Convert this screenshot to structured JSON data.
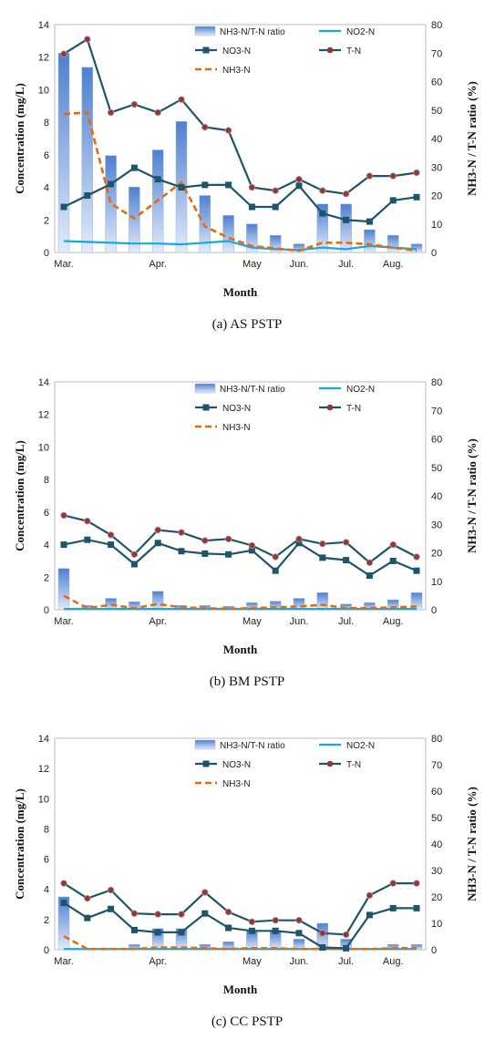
{
  "legend": [
    "NH3-N/T-N ratio",
    "NO2-N",
    "NO3-N",
    "T-N",
    "NH3-N"
  ],
  "y_left_label": "Concentration (mg/L)",
  "y_right_label": "NH3-N / T-N ratio (%)",
  "x_label": "Month",
  "colors": {
    "ratio": "#7fa6de",
    "no2": "#19a7e0",
    "no3": "#1e5568",
    "tn": "#1e5568",
    "tn_marker": "#8a3a3a",
    "nh3": "#e46c0a"
  },
  "chart_data": [
    {
      "type": "line",
      "caption": "(a)  AS  PSTP",
      "xlabel": "Month",
      "ylabel": "Concentration (mg/L)",
      "y2label": "NH3-N / T-N ratio (%)",
      "ylim": [
        0,
        14
      ],
      "y2lim": [
        0,
        80
      ],
      "yticks": [
        "0",
        "2",
        "4",
        "6",
        "8",
        "10",
        "12",
        "14"
      ],
      "y2ticks": [
        "0",
        "10",
        "20",
        "30",
        "40",
        "50",
        "60",
        "70",
        "80"
      ],
      "xtick_labels": [
        [
          "Mar.",
          0
        ],
        [
          "Apr.",
          4
        ],
        [
          "May",
          8
        ],
        [
          "Jun.",
          10
        ],
        [
          "Jul.",
          12
        ],
        [
          "Aug.",
          14
        ]
      ],
      "x": [
        0,
        1,
        2,
        3,
        4,
        5,
        6,
        7,
        8,
        9,
        10,
        11,
        12,
        13,
        14,
        15
      ],
      "series": [
        {
          "name": "NH3-N/T-N ratio",
          "type": "bar",
          "axis": "right",
          "values": [
            70,
            65,
            34,
            23,
            36,
            46,
            20,
            13,
            10,
            6,
            3,
            17,
            17,
            8,
            6,
            3
          ]
        },
        {
          "name": "NO2-N",
          "type": "line",
          "axis": "left",
          "values": [
            0.7,
            0.65,
            0.6,
            0.55,
            0.55,
            0.5,
            0.6,
            0.7,
            0.3,
            0.2,
            0.15,
            0.3,
            0.2,
            0.4,
            0.3,
            0.2
          ]
        },
        {
          "name": "NO3-N",
          "type": "line",
          "axis": "left",
          "values": [
            2.8,
            3.5,
            4.2,
            5.2,
            4.5,
            4.0,
            4.15,
            4.15,
            2.8,
            2.8,
            4.1,
            2.4,
            2.0,
            1.9,
            3.2,
            3.4
          ]
        },
        {
          "name": "T-N",
          "type": "line",
          "axis": "left",
          "values": [
            12.2,
            13.1,
            8.6,
            9.1,
            8.6,
            9.4,
            7.7,
            7.5,
            4.0,
            3.8,
            4.5,
            3.8,
            3.6,
            4.7,
            4.7,
            4.9
          ]
        },
        {
          "name": "NH3-N",
          "type": "line",
          "axis": "left",
          "values": [
            8.5,
            8.6,
            3.0,
            2.1,
            3.2,
            4.3,
            1.6,
            0.9,
            0.4,
            0.25,
            0.1,
            0.6,
            0.6,
            0.5,
            0.3,
            0.1
          ]
        }
      ]
    },
    {
      "type": "line",
      "caption": "(b)  BM  PSTP",
      "xlabel": "Month",
      "ylabel": "Concentration (mg/L)",
      "y2label": "NH3-N / T-N ratio (%)",
      "ylim": [
        0,
        14
      ],
      "y2lim": [
        0,
        80
      ],
      "yticks": [
        "0",
        "2",
        "4",
        "6",
        "8",
        "10",
        "12",
        "14"
      ],
      "y2ticks": [
        "0",
        "10",
        "20",
        "30",
        "40",
        "50",
        "60",
        "70",
        "80"
      ],
      "xtick_labels": [
        [
          "Mar.",
          0
        ],
        [
          "Apr.",
          4
        ],
        [
          "May",
          8
        ],
        [
          "Jun.",
          10
        ],
        [
          "Jul.",
          12
        ],
        [
          "Aug.",
          14
        ]
      ],
      "x": [
        0,
        1,
        2,
        3,
        4,
        5,
        6,
        7,
        8,
        9,
        10,
        11,
        12,
        13,
        14,
        15
      ],
      "series": [
        {
          "name": "NH3-N/T-N ratio",
          "type": "bar",
          "axis": "right",
          "values": [
            14.5,
            1.5,
            4,
            2.8,
            6.5,
            1.5,
            1.5,
            1.2,
            2.5,
            3,
            4,
            6,
            2,
            2.5,
            3.5,
            6
          ]
        },
        {
          "name": "NO2-N",
          "type": "line",
          "axis": "left",
          "values": [
            0.05,
            0.05,
            0.05,
            0.05,
            0.05,
            0.05,
            0.05,
            0.05,
            0.05,
            0.05,
            0.05,
            0.05,
            0.05,
            0.05,
            0.05,
            0.05
          ]
        },
        {
          "name": "NO3-N",
          "type": "line",
          "axis": "left",
          "values": [
            4.0,
            4.3,
            4.0,
            2.8,
            4.1,
            3.6,
            3.45,
            3.4,
            3.65,
            2.4,
            4.1,
            3.2,
            3.05,
            2.1,
            3.0,
            2.4
          ]
        },
        {
          "name": "T-N",
          "type": "line",
          "axis": "left",
          "values": [
            5.8,
            5.45,
            4.6,
            3.4,
            4.9,
            4.75,
            4.25,
            4.35,
            3.95,
            3.25,
            4.35,
            4.05,
            4.15,
            2.9,
            4.0,
            3.25
          ]
        },
        {
          "name": "NH3-N",
          "type": "line",
          "axis": "left",
          "values": [
            0.85,
            0.1,
            0.3,
            0.1,
            0.35,
            0.15,
            0.1,
            0.05,
            0.1,
            0.15,
            0.2,
            0.3,
            0.1,
            0.1,
            0.15,
            0.2
          ]
        }
      ]
    },
    {
      "type": "line",
      "caption": "(c)  CC  PSTP",
      "xlabel": "Month",
      "ylabel": "Concentration (mg/L)",
      "y2label": "NH3-N / T-N ratio (%)",
      "ylim": [
        0,
        14
      ],
      "y2lim": [
        0,
        80
      ],
      "yticks": [
        "0",
        "2",
        "4",
        "6",
        "8",
        "10",
        "12",
        "14"
      ],
      "y2ticks": [
        "0",
        "10",
        "20",
        "30",
        "40",
        "50",
        "60",
        "70",
        "80"
      ],
      "xtick_labels": [
        [
          "Mar.",
          0
        ],
        [
          "Apr.",
          4
        ],
        [
          "May",
          8
        ],
        [
          "Jun.",
          10
        ],
        [
          "Jul.",
          12
        ],
        [
          "Aug.",
          14
        ]
      ],
      "x": [
        0,
        1,
        2,
        3,
        4,
        5,
        6,
        7,
        8,
        9,
        10,
        11,
        12,
        13,
        14,
        15
      ],
      "series": [
        {
          "name": "NH3-N/T-N ratio",
          "type": "bar",
          "axis": "right",
          "values": [
            20,
            0.5,
            0.5,
            2,
            8,
            8,
            2,
            3,
            7,
            7,
            4,
            10,
            4,
            0.5,
            2,
            2
          ]
        },
        {
          "name": "NO2-N",
          "type": "line",
          "axis": "left",
          "values": [
            0.05,
            0.05,
            0.05,
            0.05,
            0.05,
            0.05,
            0.05,
            0.05,
            0.05,
            0.05,
            0.05,
            0.05,
            0.05,
            0.05,
            0.05,
            0.05
          ]
        },
        {
          "name": "NO3-N",
          "type": "line",
          "axis": "left",
          "values": [
            3.1,
            2.1,
            2.7,
            1.3,
            1.15,
            1.15,
            2.4,
            1.45,
            1.25,
            1.25,
            1.1,
            0.15,
            0.1,
            2.3,
            2.75,
            2.75
          ]
        },
        {
          "name": "T-N",
          "type": "line",
          "axis": "left",
          "values": [
            4.4,
            3.4,
            3.95,
            2.4,
            2.35,
            2.35,
            3.8,
            2.5,
            1.85,
            1.95,
            1.95,
            1.1,
            1.0,
            3.6,
            4.4,
            4.4
          ]
        },
        {
          "name": "NH3-N",
          "type": "line",
          "axis": "left",
          "values": [
            0.9,
            0.05,
            0.05,
            0.05,
            0.15,
            0.15,
            0.1,
            0.05,
            0.1,
            0.1,
            0.05,
            0.05,
            0.05,
            0.05,
            0.1,
            0.1
          ]
        }
      ]
    }
  ]
}
